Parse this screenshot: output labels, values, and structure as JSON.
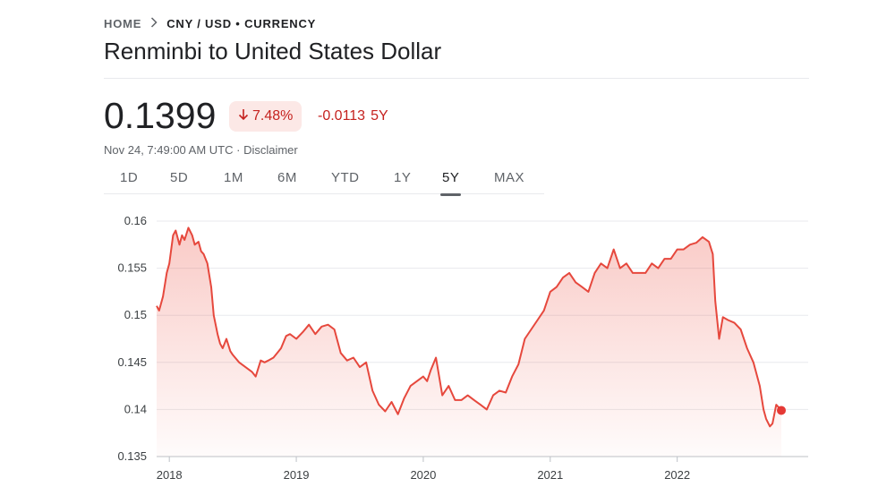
{
  "breadcrumb": {
    "home": "HOME",
    "current": "CNY / USD • CURRENCY"
  },
  "title": "Renminbi to United States Dollar",
  "quote": {
    "price": "0.1399",
    "percent_change": "7.48%",
    "abs_change": "-0.0113",
    "period": "5Y",
    "timestamp": "Nov 24, 7:49:00 AM UTC · Disclaimer"
  },
  "tabs": [
    "1D",
    "5D",
    "1M",
    "6M",
    "YTD",
    "1Y",
    "5Y",
    "MAX"
  ],
  "active_tab": "5Y",
  "colors": {
    "negative": "#c5221f",
    "line": "#e6483d",
    "dot": "#e53935"
  },
  "chart_data": {
    "type": "area",
    "ylim": [
      0.135,
      0.16
    ],
    "xlim": [
      2017.9,
      2022.82
    ],
    "yticks": [
      0.16,
      0.155,
      0.15,
      0.145,
      0.14,
      0.135
    ],
    "ytick_labels": [
      "0.16",
      "0.155",
      "0.15",
      "0.145",
      "0.14",
      "0.135"
    ],
    "xticks": [
      2018,
      2019,
      2020,
      2021,
      2022
    ],
    "xtick_labels": [
      "2018",
      "2019",
      "2020",
      "2021",
      "2022"
    ],
    "grid": true,
    "x": [
      2017.9,
      2017.92,
      2017.95,
      2017.98,
      2018.0,
      2018.03,
      2018.05,
      2018.08,
      2018.1,
      2018.12,
      2018.15,
      2018.18,
      2018.2,
      2018.23,
      2018.25,
      2018.27,
      2018.3,
      2018.33,
      2018.35,
      2018.38,
      2018.4,
      2018.42,
      2018.45,
      2018.48,
      2018.5,
      2018.55,
      2018.6,
      2018.65,
      2018.68,
      2018.72,
      2018.75,
      2018.78,
      2018.82,
      2018.85,
      2018.88,
      2018.92,
      2018.95,
      2019.0,
      2019.05,
      2019.1,
      2019.15,
      2019.2,
      2019.25,
      2019.3,
      2019.35,
      2019.4,
      2019.45,
      2019.5,
      2019.55,
      2019.6,
      2019.65,
      2019.7,
      2019.75,
      2019.8,
      2019.85,
      2019.9,
      2019.95,
      2020.0,
      2020.03,
      2020.06,
      2020.1,
      2020.15,
      2020.2,
      2020.25,
      2020.3,
      2020.35,
      2020.4,
      2020.45,
      2020.5,
      2020.55,
      2020.6,
      2020.65,
      2020.7,
      2020.75,
      2020.8,
      2020.85,
      2020.9,
      2020.95,
      2021.0,
      2021.05,
      2021.1,
      2021.15,
      2021.2,
      2021.25,
      2021.3,
      2021.35,
      2021.4,
      2021.45,
      2021.5,
      2021.55,
      2021.6,
      2021.65,
      2021.7,
      2021.75,
      2021.8,
      2021.85,
      2021.9,
      2021.95,
      2022.0,
      2022.05,
      2022.1,
      2022.15,
      2022.2,
      2022.25,
      2022.28,
      2022.3,
      2022.33,
      2022.36,
      2022.4,
      2022.45,
      2022.5,
      2022.55,
      2022.6,
      2022.65,
      2022.68,
      2022.7,
      2022.73,
      2022.75,
      2022.78,
      2022.8,
      2022.82
    ],
    "values": [
      0.151,
      0.1505,
      0.152,
      0.1545,
      0.1555,
      0.1585,
      0.159,
      0.1575,
      0.1585,
      0.158,
      0.1593,
      0.1585,
      0.1575,
      0.1578,
      0.1568,
      0.1565,
      0.1555,
      0.153,
      0.15,
      0.148,
      0.147,
      0.1465,
      0.1475,
      0.1462,
      0.1458,
      0.145,
      0.1445,
      0.144,
      0.1435,
      0.1452,
      0.145,
      0.1452,
      0.1455,
      0.146,
      0.1465,
      0.1478,
      0.148,
      0.1475,
      0.1482,
      0.149,
      0.148,
      0.1488,
      0.149,
      0.1485,
      0.146,
      0.1452,
      0.1455,
      0.1445,
      0.145,
      0.142,
      0.1405,
      0.1398,
      0.1408,
      0.1395,
      0.1412,
      0.1425,
      0.143,
      0.1435,
      0.143,
      0.1442,
      0.1455,
      0.1415,
      0.1425,
      0.141,
      0.141,
      0.1415,
      0.141,
      0.1405,
      0.14,
      0.1415,
      0.142,
      0.1418,
      0.1435,
      0.1448,
      0.1475,
      0.1485,
      0.1495,
      0.1505,
      0.1525,
      0.153,
      0.154,
      0.1545,
      0.1535,
      0.153,
      0.1525,
      0.1545,
      0.1555,
      0.155,
      0.157,
      0.155,
      0.1555,
      0.1545,
      0.1545,
      0.1545,
      0.1555,
      0.155,
      0.156,
      0.156,
      0.157,
      0.157,
      0.1575,
      0.1577,
      0.1583,
      0.1578,
      0.1565,
      0.1515,
      0.1475,
      0.1498,
      0.1495,
      0.1492,
      0.1485,
      0.1465,
      0.145,
      0.1425,
      0.14,
      0.139,
      0.1382,
      0.1385,
      0.1405,
      0.1402,
      0.1399
    ]
  }
}
